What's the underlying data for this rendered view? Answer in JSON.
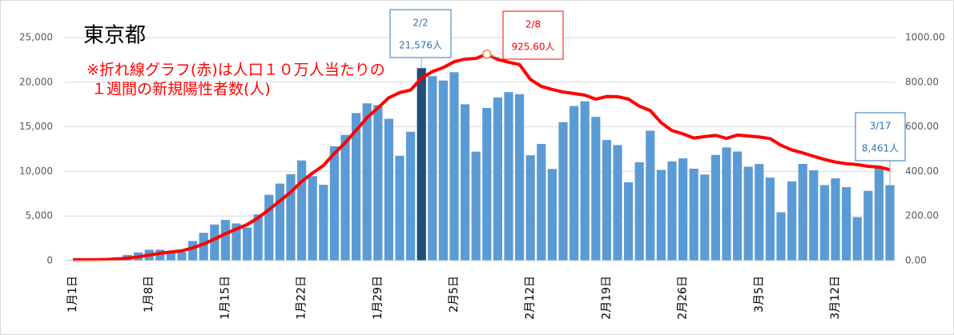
{
  "chart_data": {
    "type": "bar_line",
    "title": "東京都",
    "subtitle": [
      "※折れ線グラフ(赤)は人口１０万人当たりの",
      "１週間の新規陽性者数(人)"
    ],
    "categories": [
      "1月1日",
      null,
      null,
      null,
      null,
      null,
      null,
      "1月8日",
      null,
      null,
      null,
      null,
      null,
      null,
      "1月15日",
      null,
      null,
      null,
      null,
      null,
      null,
      "1月22日",
      null,
      null,
      null,
      null,
      null,
      null,
      "1月29日",
      null,
      null,
      null,
      null,
      null,
      null,
      "2月5日",
      null,
      null,
      null,
      null,
      null,
      null,
      "2月12日",
      null,
      null,
      null,
      null,
      null,
      null,
      "2月19日",
      null,
      null,
      null,
      null,
      null,
      null,
      "2月26日",
      null,
      null,
      null,
      null,
      null,
      null,
      "3月5日",
      null,
      null,
      null,
      null,
      null,
      null,
      "3月12日",
      null,
      null,
      null,
      null,
      null
    ],
    "series": [
      {
        "name": "新規陽性者数",
        "color": "#5b9bd5",
        "highlight_max_color": "#1f4e79",
        "values": [
          79,
          84,
          103,
          151,
          390,
          641,
          922,
          1224,
          1223,
          871,
          962,
          2198,
          3124,
          4051,
          4561,
          4172,
          3719,
          5185,
          7377,
          8638,
          9699,
          11227,
          9468,
          8503,
          12813,
          14086,
          16538,
          17631,
          17433,
          15895,
          11751,
          14445,
          21576,
          20679,
          20185,
          21121,
          17526,
          12214,
          17113,
          18287,
          18891,
          18660,
          11811,
          13077,
          10277,
          15525,
          17327,
          17864,
          16112,
          13518,
          12958,
          8776,
          11034,
          14567,
          10169,
          11125,
          11464,
          10313,
          9649,
          11848,
          12693,
          12231,
          10530,
          10834,
          9310,
          5423,
          8880,
          10841,
          10127,
          8465,
          9226,
          8239,
          4876,
          7821,
          10352,
          8461
        ],
        "value_labels": [
          null,
          null,
          null,
          null,
          null,
          null,
          null,
          null,
          null,
          null,
          null,
          null,
          null,
          null,
          null,
          null,
          null,
          null,
          null,
          null,
          null,
          null,
          null,
          null,
          null,
          null,
          null,
          null,
          null,
          null,
          null,
          null,
          "21,576人",
          null,
          null,
          null,
          null,
          null,
          null,
          null,
          null,
          null,
          null,
          null,
          null,
          null,
          null,
          null,
          null,
          null,
          null,
          null,
          null,
          null,
          null,
          null,
          null,
          null,
          null,
          null,
          null,
          null,
          null,
          null,
          null,
          null,
          null,
          null,
          null,
          null,
          null,
          null,
          null,
          null,
          null,
          "8,461人"
        ]
      },
      {
        "name": "人口10万人当たり1週間の新規陽性者数",
        "color": "#ff0000",
        "axis": "y2",
        "values": [
          4,
          4,
          4,
          5,
          7,
          11,
          16.8,
          24.9,
          33.0,
          38.5,
          44.2,
          57.1,
          74.7,
          96.9,
          120.6,
          141.5,
          161.7,
          191.7,
          228.5,
          267.6,
          307.7,
          355.0,
          392.6,
          426.5,
          480.7,
          528.3,
          584.3,
          640.6,
          684.7,
          730.3,
          753.4,
          764.9,
          818.1,
          847.5,
          865.6,
          891.8,
          903.4,
          906.6,
          925.6,
          902.2,
          889.5,
          878.7,
          812.6,
          781.1,
          767.3,
          756.1,
          749.2,
          741.9,
          723.9,
          736.0,
          735.1,
          724.5,
          692.6,
          673.0,
          618.4,
          583.0,
          568.4,
          549.7,
          555.9,
          561.6,
          548.3,
          563.0,
          558.8,
          554.3,
          547.2,
          517.2,
          496.1,
          483.0,
          468.0,
          453.4,
          442.0,
          434.4,
          430.5,
          423.0,
          419.5,
          407.7
        ],
        "value_labels": [
          null,
          null,
          null,
          null,
          null,
          null,
          null,
          null,
          null,
          null,
          null,
          null,
          null,
          null,
          null,
          null,
          null,
          null,
          null,
          null,
          null,
          null,
          null,
          null,
          null,
          null,
          null,
          null,
          null,
          null,
          null,
          null,
          null,
          null,
          null,
          null,
          null,
          null,
          "925.60人",
          null,
          null,
          null,
          null,
          null,
          null,
          null,
          null,
          null,
          null,
          null,
          null,
          null,
          null,
          null,
          null,
          null,
          null,
          null,
          null,
          null,
          null,
          null,
          null,
          null,
          null,
          null,
          null,
          null,
          null,
          null,
          null,
          null,
          null,
          null,
          null,
          null
        ]
      }
    ],
    "annotations": [
      "2/2",
      "2/8",
      "3/17"
    ],
    "ylim": [
      0,
      25000
    ],
    "yticks": [
      0,
      {
        "value": 5000,
        "label": "5,000"
      },
      {
        "value": 10000,
        "label": "10,000"
      },
      {
        "value": 15000,
        "label": "15,000"
      },
      {
        "value": 20000,
        "label": "20,000"
      },
      {
        "value": 25000,
        "label": "25,000"
      }
    ],
    "y2lim": [
      0,
      1000
    ],
    "y2ticks": [
      {
        "value": 0,
        "label": "0.00"
      },
      {
        "value": 200,
        "label": "200.00"
      },
      {
        "value": 400,
        "label": "400.00"
      },
      {
        "value": 600,
        "label": "600.00"
      },
      {
        "value": 800,
        "label": "800.00"
      },
      {
        "value": 1000,
        "label": "1000.00"
      }
    ],
    "grid": true
  }
}
